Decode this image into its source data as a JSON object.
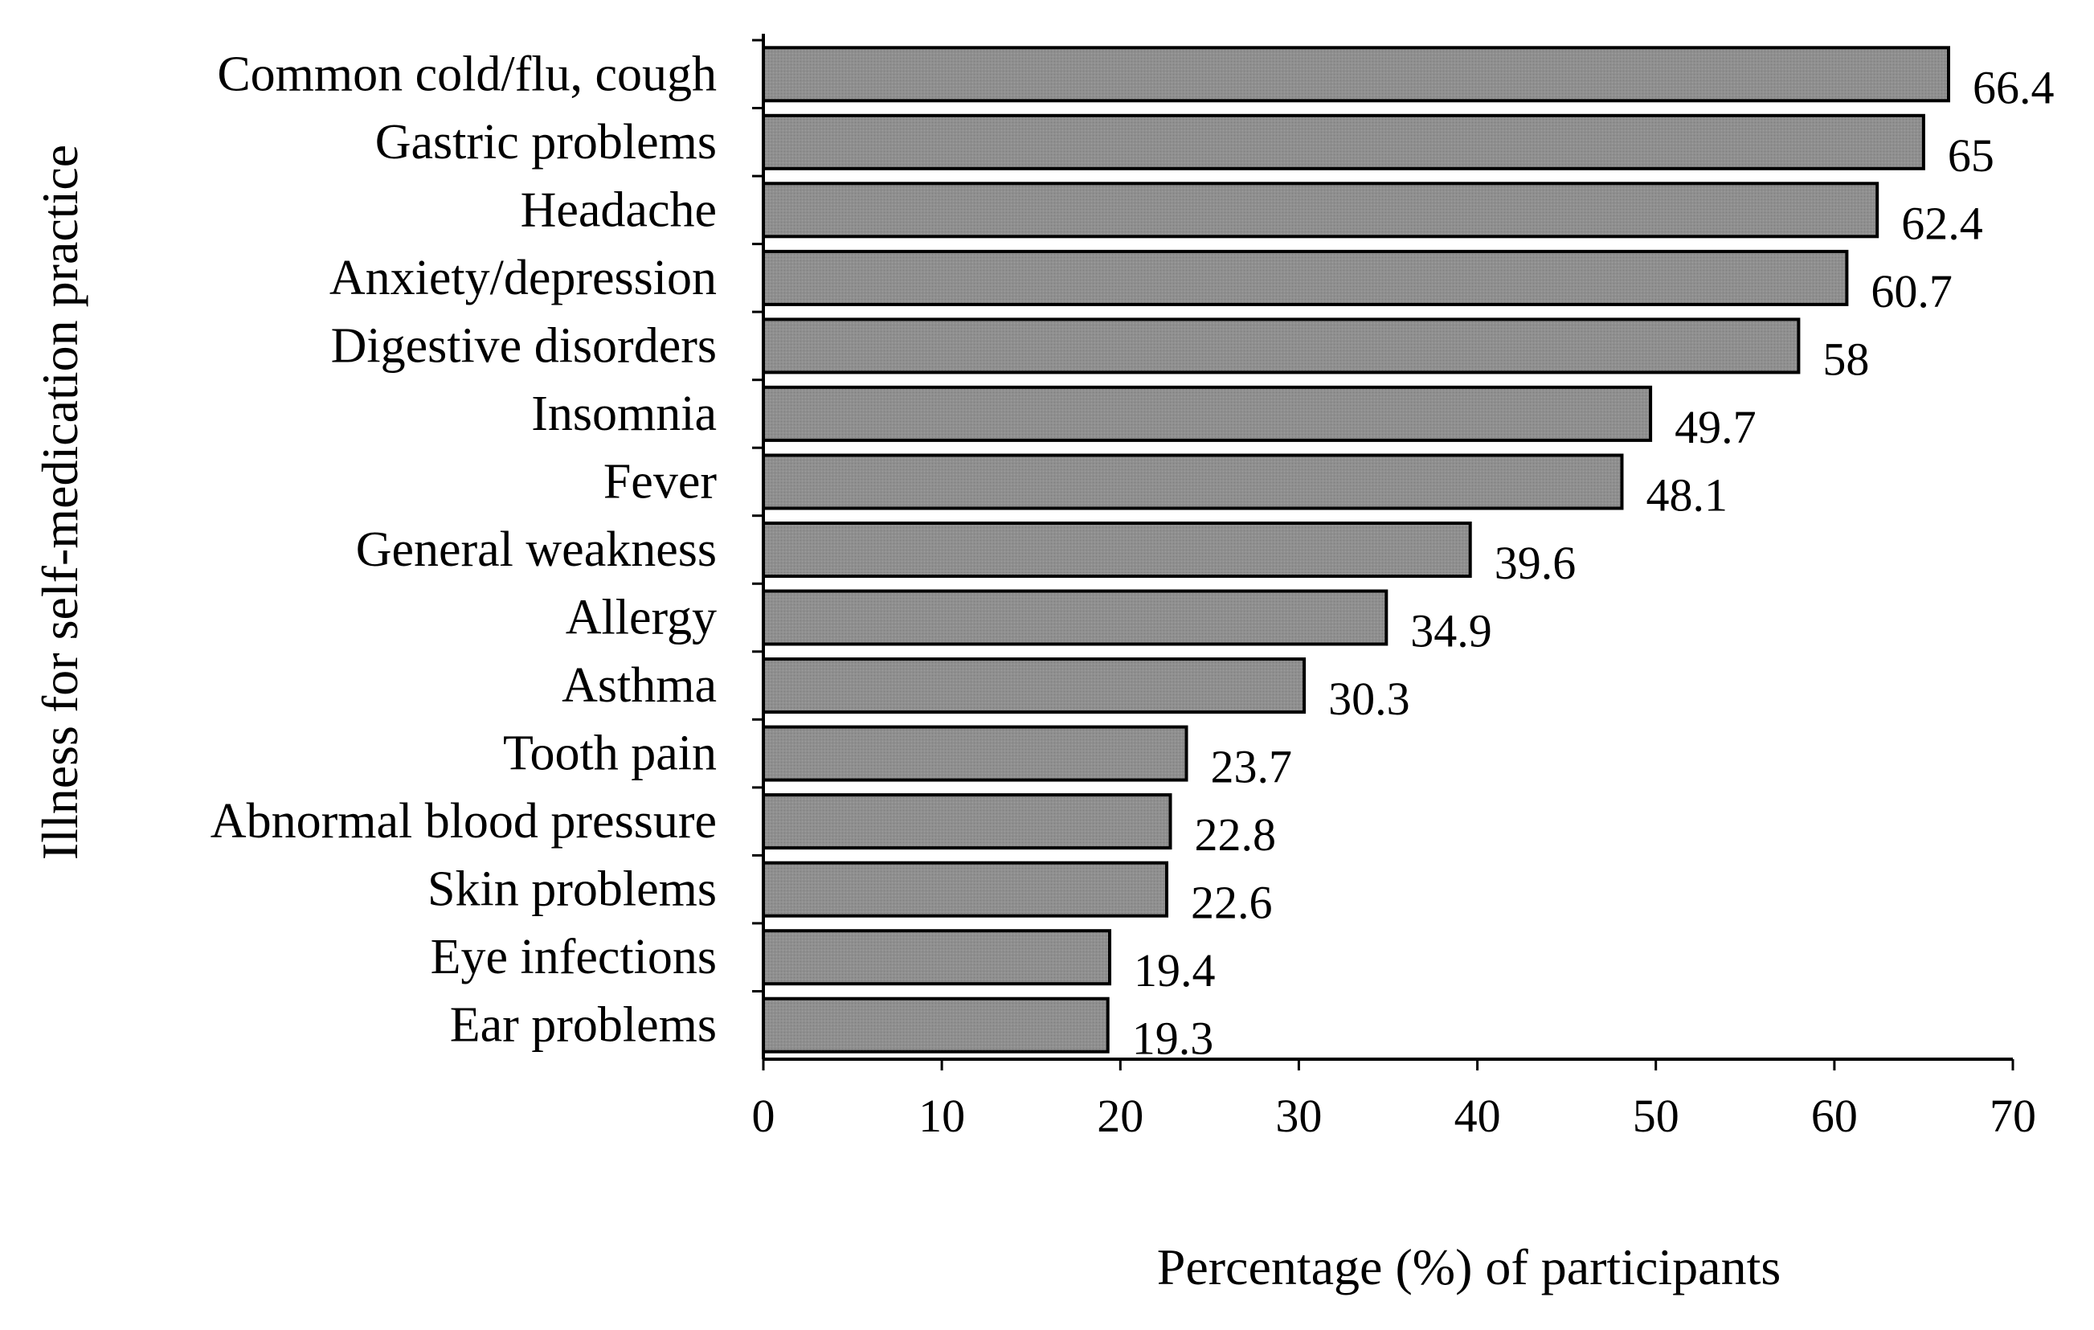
{
  "chart_data": {
    "type": "bar",
    "orientation": "horizontal",
    "categories": [
      "Common cold/flu, cough",
      "Gastric problems",
      "Headache",
      "Anxiety/depression",
      "Digestive disorders",
      "Insomnia",
      "Fever",
      "General weakness",
      "Allergy",
      "Asthma",
      "Tooth pain",
      "Abnormal blood pressure",
      "Skin problems",
      "Eye infections",
      "Ear problems"
    ],
    "values": [
      66.4,
      65,
      62.4,
      60.7,
      58,
      49.7,
      48.1,
      39.6,
      34.9,
      30.3,
      23.7,
      22.8,
      22.6,
      19.4,
      19.3
    ],
    "value_labels": [
      "66.4",
      "65",
      "62.4",
      "60.7",
      "58",
      "49.7",
      "48.1",
      "39.6",
      "34.9",
      "30.3",
      "23.7",
      "22.8",
      "22.6",
      "19.4",
      "19.3"
    ],
    "title": "",
    "xlabel": "Percentage (%) of participants",
    "ylabel": "Illness for self-medication practice",
    "xlim": [
      0,
      70
    ],
    "xticks": [
      0,
      10,
      20,
      30,
      40,
      50,
      60,
      70
    ],
    "xtick_labels": [
      "0",
      "10",
      "20",
      "30",
      "40",
      "50",
      "60",
      "70"
    ],
    "grid": false,
    "legend": "none",
    "colors": {
      "bar_fill": "#8f8f8f",
      "bar_stroke": "#000000",
      "axis": "#000000",
      "text": "#000000"
    }
  }
}
